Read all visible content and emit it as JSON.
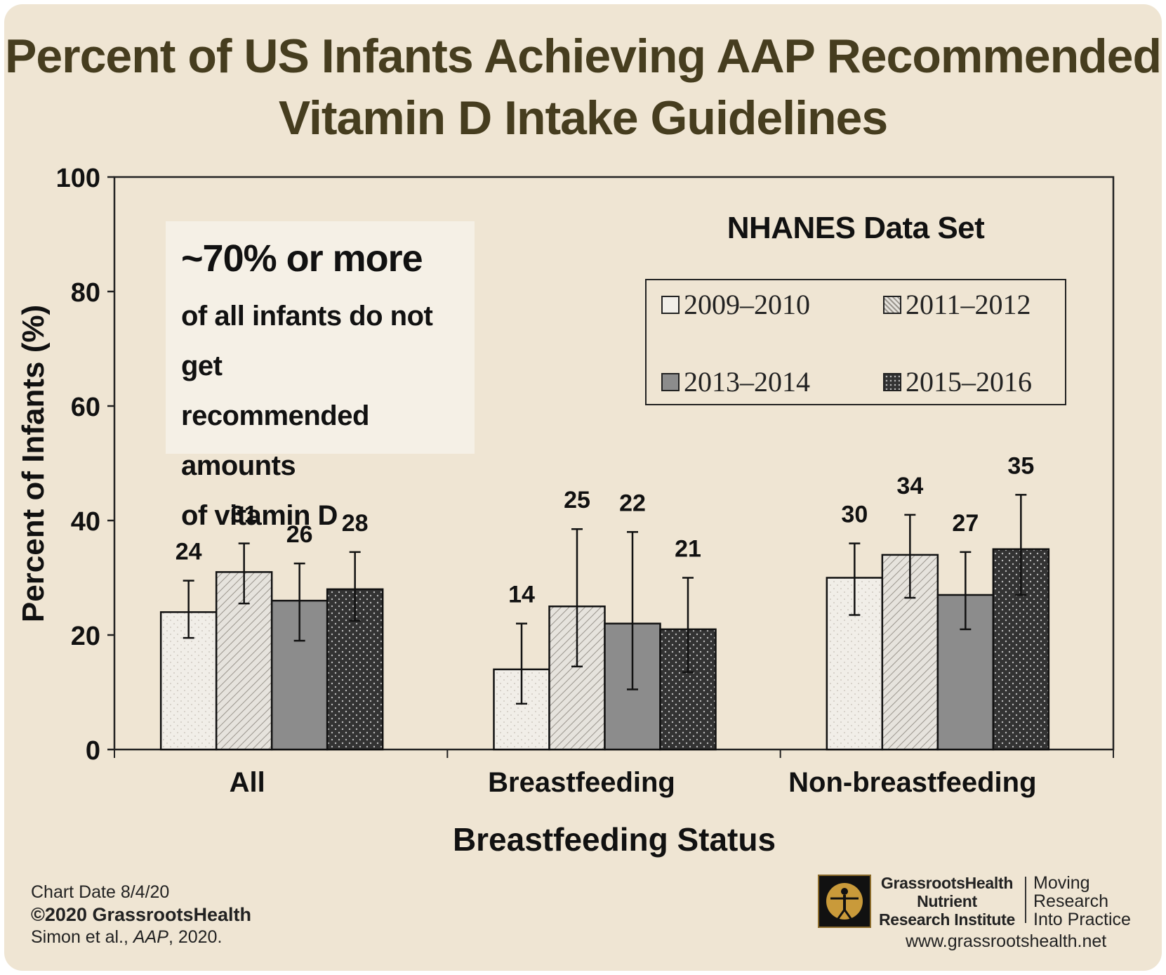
{
  "title_lines": [
    "Percent of US Infants Achieving AAP Recommended",
    "Vitamin D Intake Guidelines"
  ],
  "callout": {
    "headline": "~70% or more",
    "lines": [
      "of all infants do not get",
      "recommended amounts",
      "of vitamin D"
    ]
  },
  "legend": {
    "title": "NHANES Data Set",
    "items": [
      {
        "label": "2009–2010",
        "fill": "#f1eee8",
        "pattern": "dots-light"
      },
      {
        "label": "2011–2012",
        "fill": "#e3e0da",
        "pattern": "diagonal"
      },
      {
        "label": "2013–2014",
        "fill": "#8c8c8c",
        "pattern": "solid"
      },
      {
        "label": "2015–2016",
        "fill": "#333333",
        "pattern": "dots-dark"
      }
    ]
  },
  "chart_data": {
    "type": "bar",
    "title": "Percent of US Infants Achieving AAP Recommended Vitamin D Intake Guidelines",
    "xlabel": "Breastfeeding Status",
    "ylabel": "Percent of Infants (%)",
    "ylim": [
      0,
      100
    ],
    "yticks": [
      0,
      20,
      40,
      60,
      80,
      100
    ],
    "categories": [
      "All",
      "Breastfeeding",
      "Non-breastfeeding"
    ],
    "series": [
      {
        "name": "2009–2010",
        "values": [
          24,
          14,
          30
        ],
        "labels": [
          "24",
          "14",
          "30"
        ],
        "ci_low": [
          19.5,
          8,
          23.5
        ],
        "ci_high": [
          29.5,
          22,
          36
        ]
      },
      {
        "name": "2011–2012",
        "values": [
          31,
          25,
          34
        ],
        "labels": [
          "31",
          "25",
          "34"
        ],
        "ci_low": [
          25.5,
          14.5,
          26.5
        ],
        "ci_high": [
          36,
          38.5,
          41
        ]
      },
      {
        "name": "2013–2014",
        "values": [
          26,
          22,
          27
        ],
        "labels": [
          "26",
          "22",
          "27"
        ],
        "ci_low": [
          19,
          10.5,
          21
        ],
        "ci_high": [
          32.5,
          38,
          34.5
        ]
      },
      {
        "name": "2015–2016",
        "values": [
          28,
          21,
          35
        ],
        "labels": [
          "28",
          "21",
          "35"
        ],
        "ci_low": [
          22.5,
          13.5,
          27
        ],
        "ci_high": [
          34.5,
          30,
          44.5
        ]
      }
    ],
    "legend_position": "top-right",
    "grid": false
  },
  "footer": {
    "chart_date": "Chart Date 8/4/20",
    "copyright": "©2020 GrassrootsHealth",
    "citation_prefix": "Simon et al., ",
    "citation_journal": "AAP",
    "citation_suffix": ", 2020.",
    "org_lines": [
      "GrassrootsHealth",
      "Nutrient",
      "Research Institute"
    ],
    "tagline": [
      "Moving",
      "Research",
      "Into Practice"
    ],
    "website": "www.grassrootshealth.net"
  },
  "colors": {
    "background": "#efe5d3",
    "title": "#463d1f",
    "axis": "#222222"
  }
}
